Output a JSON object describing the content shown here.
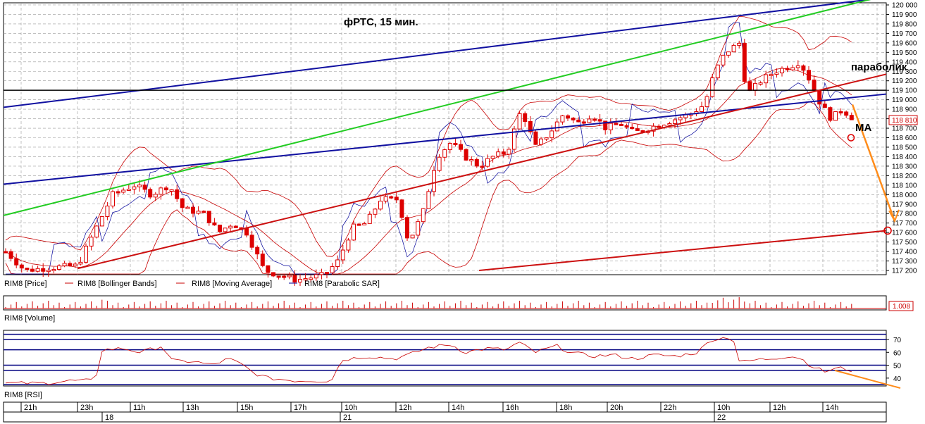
{
  "chart_data": [
    {
      "type": "candlestick",
      "title": "фРТС, 15 мин.",
      "ylim": [
        117150,
        120020
      ],
      "y_ticks": [
        "120 000",
        "119 900",
        "119 800",
        "119 700",
        "119 600",
        "119 500",
        "119 400",
        "119 300",
        "119 200",
        "119 100",
        "119 000",
        "118 900",
        "118 800",
        "118 700",
        "118 600",
        "118 500",
        "118 400",
        "118 300",
        "118 200",
        "118 100",
        "118 000",
        "117 900",
        "117 800",
        "117 700",
        "117 600",
        "117 500",
        "117 400",
        "117 300",
        "117 200"
      ],
      "last_price_label": "118 810",
      "annotations": [
        "параболик",
        "MA"
      ],
      "legend": [
        "RIM8 [Price]",
        "RIM8 [Bollinger Bands]",
        "RIM8 [Moving Average]",
        "RIM8 [Parabolic SAR]"
      ],
      "colors": {
        "candle": "#dd0000",
        "bands": "#c80000",
        "sar": "#000099",
        "trend_blue": "#1010a0",
        "trend_green": "#22cc22",
        "trend_red": "#cc1010",
        "forecast": "#ff8c1a",
        "grid": "#9a9a9a"
      }
    },
    {
      "type": "bar",
      "panel": "volume",
      "legend": [
        "RIM8 [Volume]"
      ],
      "last_value_label": "1.008"
    },
    {
      "type": "line",
      "panel": "rsi",
      "legend": [
        "RIM8 [RSI]"
      ],
      "ylim": [
        35,
        76
      ],
      "y_ticks": [
        "70",
        "60",
        "50",
        "40"
      ],
      "levels": [
        74,
        70,
        62,
        50,
        46,
        35
      ]
    },
    {
      "type": "time_axis",
      "hour_labels": [
        "21h",
        "23h",
        "11h",
        "13h",
        "15h",
        "17h",
        "10h",
        "12h",
        "14h",
        "16h",
        "18h",
        "20h",
        "22h",
        "10h",
        "12h",
        "14h"
      ],
      "day_labels": [
        "18",
        "21",
        "22"
      ]
    }
  ]
}
